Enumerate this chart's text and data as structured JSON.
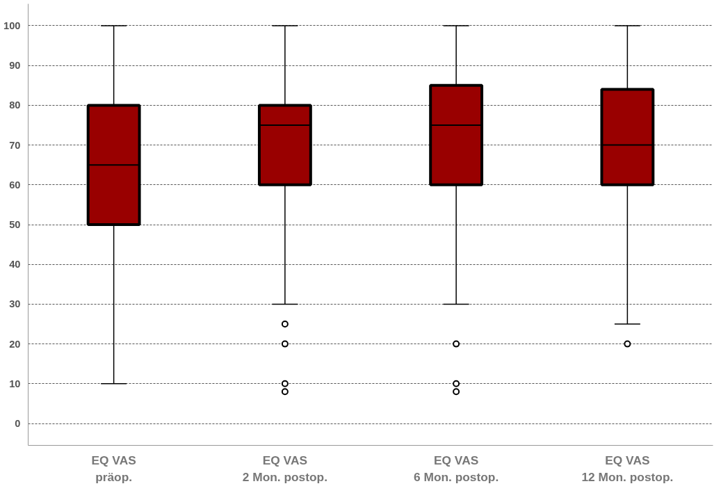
{
  "chart_data": {
    "type": "box",
    "categories": [
      "EQ VAS\npräop.",
      "EQ VAS\n2 Mon. postop.",
      "EQ VAS\n6 Mon. postop.",
      "EQ VAS\n12 Mon. postop."
    ],
    "boxes": [
      {
        "low": 10,
        "q1": 50,
        "median": 65,
        "q3": 80,
        "high": 100
      },
      {
        "low": 30,
        "q1": 60,
        "median": 75,
        "q3": 80,
        "high": 100,
        "outliers": [
          25,
          20,
          10,
          8
        ]
      },
      {
        "low": 30,
        "q1": 60,
        "median": 75,
        "q3": 85,
        "high": 100,
        "outliers": [
          20,
          10,
          8
        ]
      },
      {
        "low": 25,
        "q1": 60,
        "median": 70,
        "q3": 84,
        "high": 100,
        "outliers": [
          20
        ]
      }
    ],
    "color": "#990000",
    "ylim": [
      -5.5,
      105.5
    ],
    "yticks": [
      0,
      10,
      20,
      30,
      40,
      50,
      60,
      70,
      80,
      90,
      100
    ],
    "grid": "y"
  }
}
